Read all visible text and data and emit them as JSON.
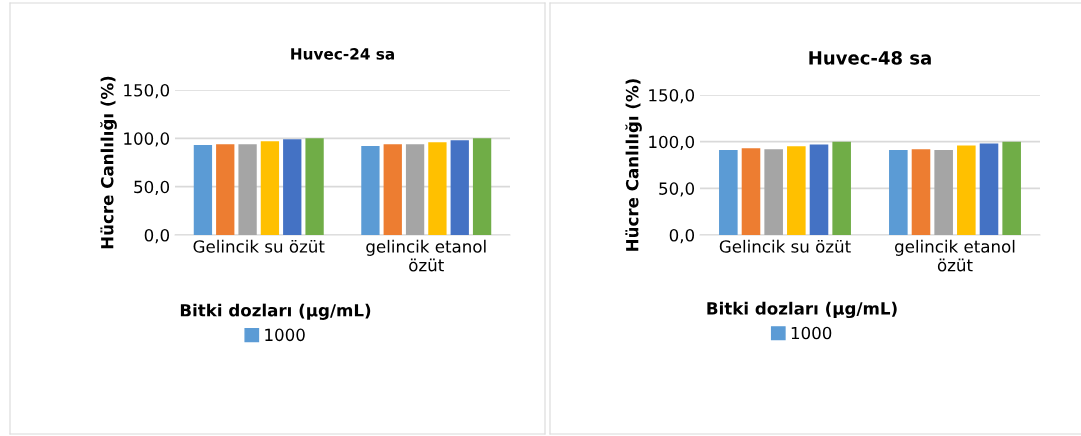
{
  "chart_data": [
    {
      "type": "bar",
      "title": "Huvec-24 sa",
      "ylabel": "Hücre Canlılığı (%)",
      "legend_title": "Bitki dozları (µg/mL)",
      "categories": [
        "Gelincik su özüt",
        "gelincik etanol özüt"
      ],
      "series": [
        {
          "name": "1000",
          "color": "#5b9bd5",
          "values": [
            93,
            92
          ]
        },
        {
          "color": "#ed7d31",
          "values": [
            94,
            94
          ]
        },
        {
          "color": "#a5a5a5",
          "values": [
            94,
            94
          ]
        },
        {
          "color": "#ffc000",
          "values": [
            97,
            96
          ]
        },
        {
          "color": "#4472c4",
          "values": [
            99,
            98
          ]
        },
        {
          "color": "#70ad47",
          "values": [
            100,
            100
          ]
        }
      ],
      "ylim": [
        0,
        150
      ],
      "yticks": [
        {
          "value": 0,
          "label": "0,0"
        },
        {
          "value": 50,
          "label": "50,0"
        },
        {
          "value": 100,
          "label": "100,0"
        },
        {
          "value": 150,
          "label": "150,0"
        }
      ],
      "grid": "y",
      "legend": "bottom"
    },
    {
      "type": "bar",
      "title": "Huvec-48 sa",
      "ylabel": "Hücre Canlılığı (%)",
      "legend_title": "Bitki dozları (µg/mL)",
      "categories": [
        "Gelincik su özüt",
        "gelincik etanol özüt"
      ],
      "series": [
        {
          "name": "1000",
          "color": "#5b9bd5",
          "values": [
            91,
            91
          ]
        },
        {
          "color": "#ed7d31",
          "values": [
            93,
            92
          ]
        },
        {
          "color": "#a5a5a5",
          "values": [
            92,
            91
          ]
        },
        {
          "color": "#ffc000",
          "values": [
            95,
            96
          ]
        },
        {
          "color": "#4472c4",
          "values": [
            97,
            98
          ]
        },
        {
          "color": "#70ad47",
          "values": [
            100,
            100
          ]
        }
      ],
      "ylim": [
        0,
        150
      ],
      "yticks": [
        {
          "value": 0,
          "label": "0,0"
        },
        {
          "value": 50,
          "label": "50,0"
        },
        {
          "value": 100,
          "label": "100,0"
        },
        {
          "value": 150,
          "label": "150,0"
        }
      ],
      "grid": "y",
      "legend": "bottom"
    }
  ]
}
